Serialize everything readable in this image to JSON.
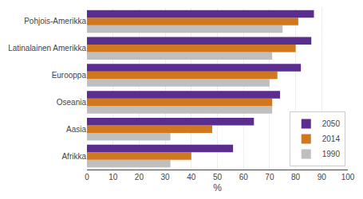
{
  "chart_data": {
    "type": "bar",
    "orientation": "horizontal",
    "categories": [
      "Afrikka",
      "Aasia",
      "Oseania",
      "Eurooppa",
      "Latinalainen Amerikka",
      "Pohjois-Amerikka"
    ],
    "series": [
      {
        "name": "2050",
        "color": "#5b2d8e",
        "values": [
          56,
          64,
          74,
          82,
          86,
          87
        ]
      },
      {
        "name": "2014",
        "color": "#d07820",
        "values": [
          40,
          48,
          71,
          73,
          80,
          81
        ]
      },
      {
        "name": "1990",
        "color": "#c0bfbf",
        "values": [
          32,
          32,
          71,
          70,
          71,
          75
        ]
      }
    ],
    "xlabel": "%",
    "xlim": [
      0,
      100
    ],
    "xticks": [
      0,
      10,
      20,
      30,
      40,
      50,
      60,
      70,
      80,
      90,
      100
    ],
    "grid": true,
    "legend": "lower right"
  }
}
